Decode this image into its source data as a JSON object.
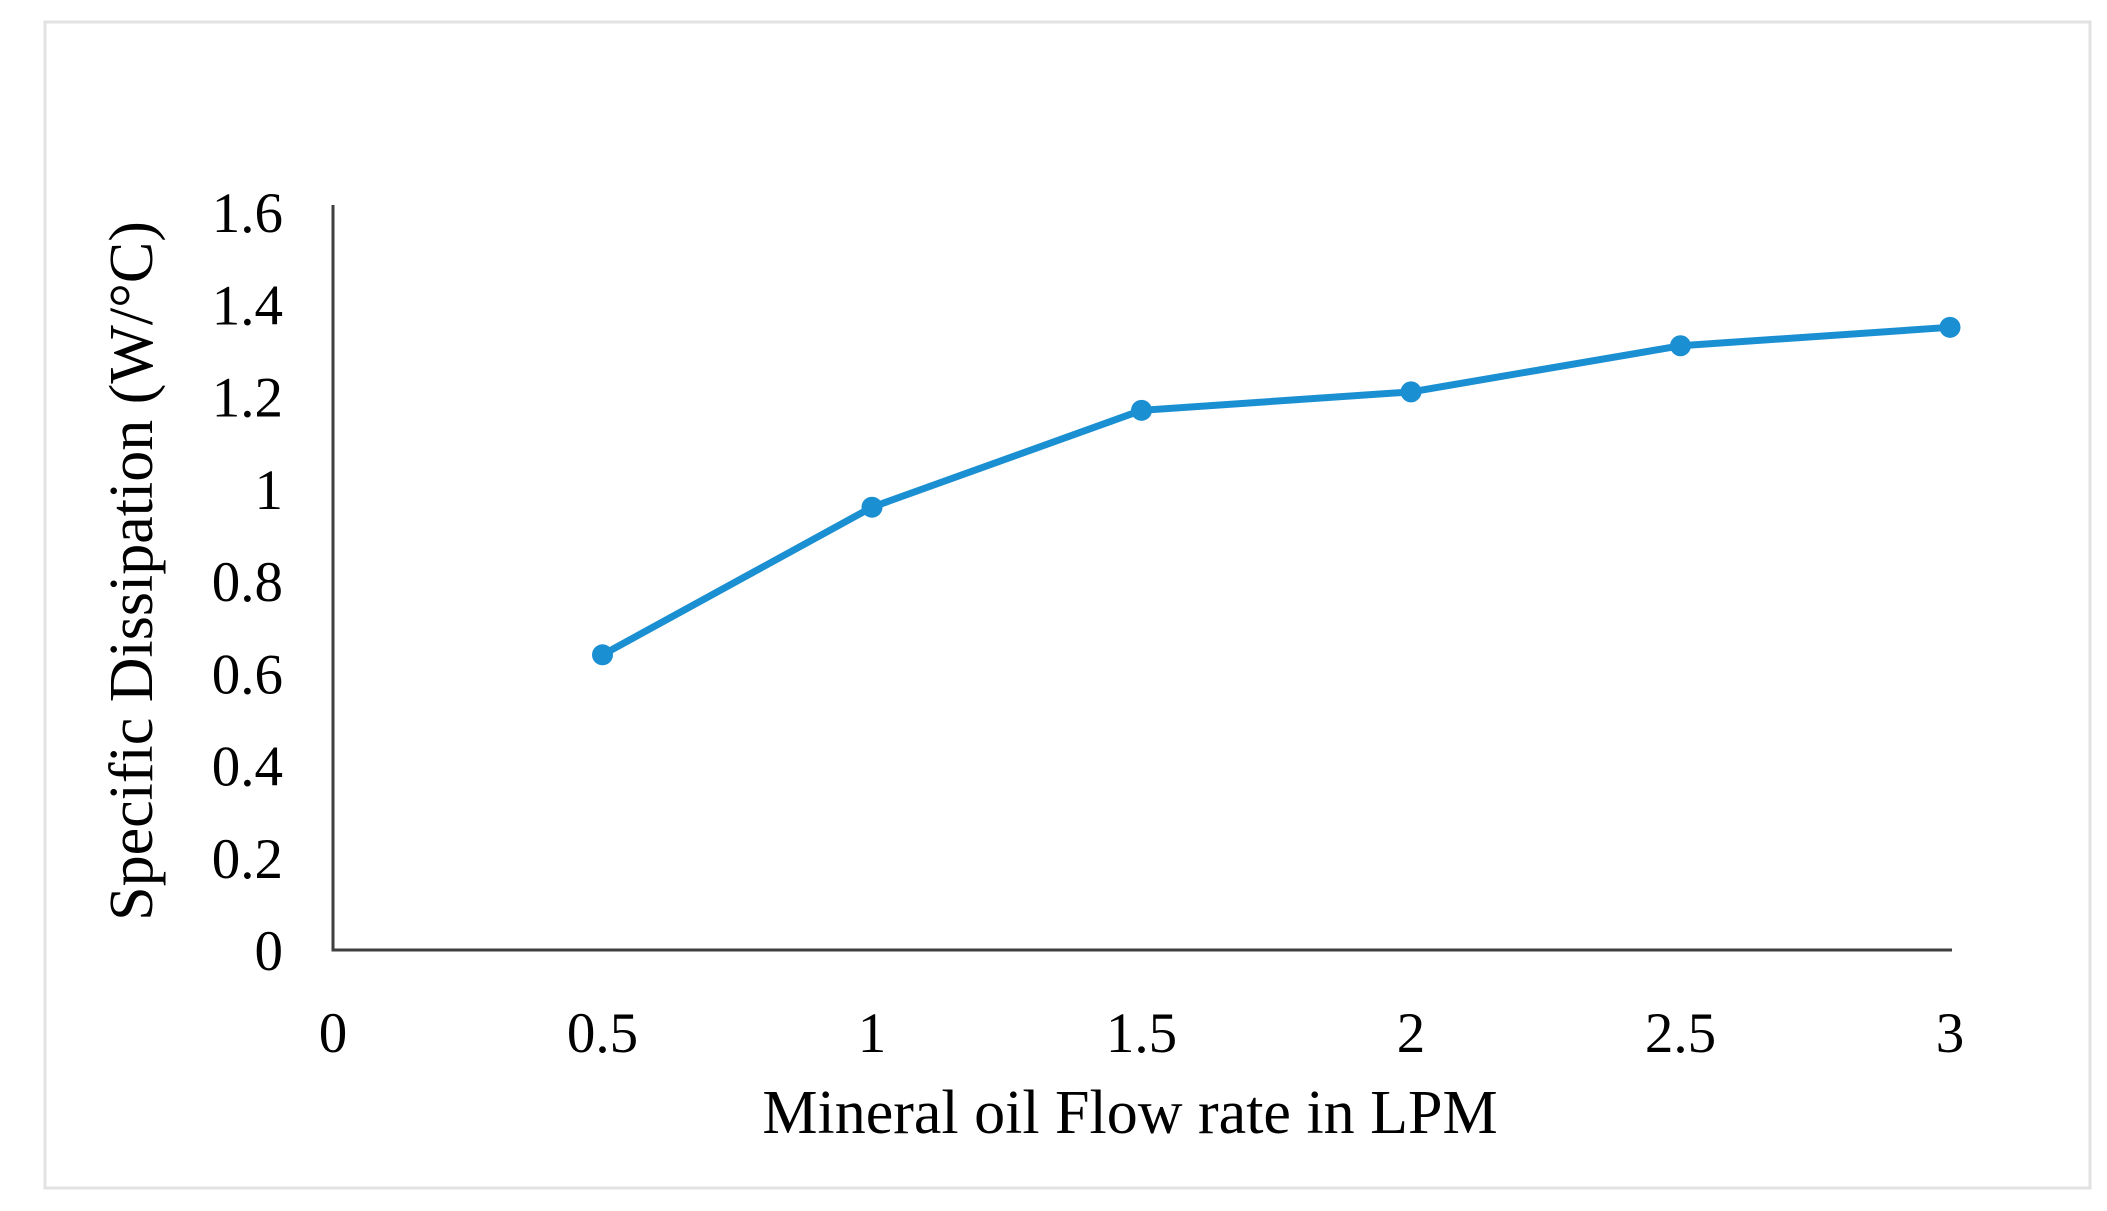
{
  "figure": {
    "background": "#ffffff",
    "frame_color": "#e2e2e2"
  },
  "chart_data": {
    "type": "line",
    "title": "",
    "xlabel": "Mineral oil Flow rate in LPM",
    "ylabel": "Specific Dissipation (W/°C)",
    "x": [
      0.5,
      1,
      1.5,
      2,
      2.5,
      3
    ],
    "y": [
      0.64,
      0.96,
      1.17,
      1.21,
      1.31,
      1.35
    ],
    "xlim": [
      0,
      3
    ],
    "ylim": [
      0,
      1.6
    ],
    "x_ticks": [
      "0",
      "0.5",
      "1",
      "1.5",
      "2",
      "2.5",
      "3"
    ],
    "y_ticks": [
      "0",
      "0.2",
      "0.4",
      "0.6",
      "0.8",
      "1",
      "1.2",
      "1.4",
      "1.6"
    ],
    "grid": false,
    "legend": "none",
    "marker": "circle",
    "line_color": "#1A8FD1",
    "axis_color": "#3F3F3F",
    "tick_label_color": "#000000"
  }
}
